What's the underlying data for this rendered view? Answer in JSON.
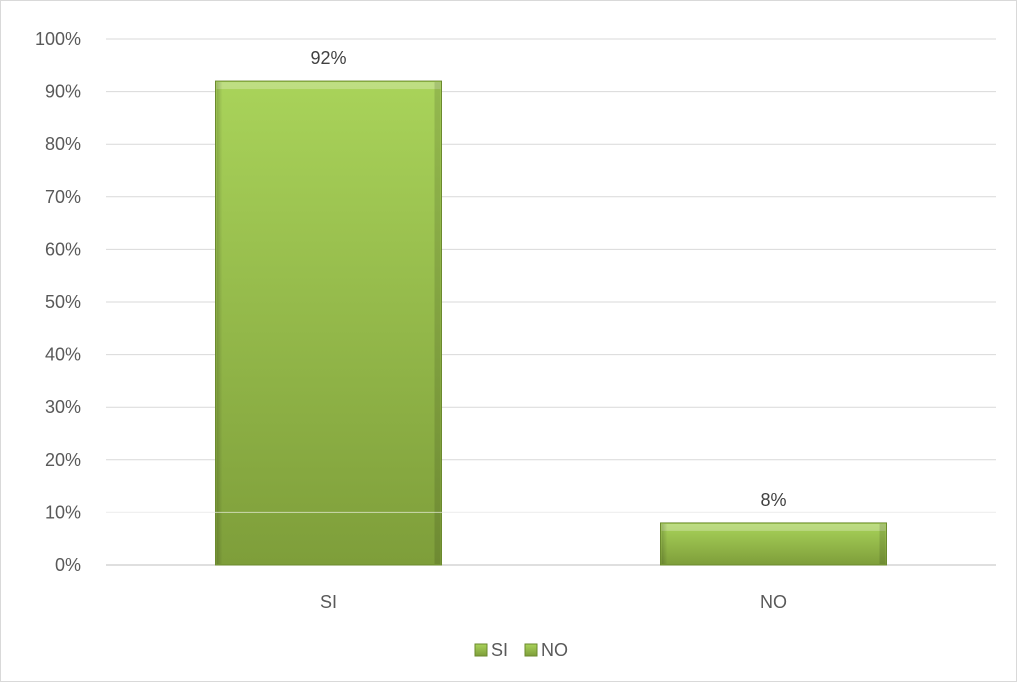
{
  "chart_data": {
    "type": "bar",
    "categories": [
      "SI",
      "NO"
    ],
    "values": [
      92,
      8
    ],
    "data_labels": [
      "92%",
      "8%"
    ],
    "ylim": [
      0,
      100
    ],
    "yticks": [
      0,
      10,
      20,
      30,
      40,
      50,
      60,
      70,
      80,
      90,
      100
    ],
    "ytick_labels": [
      "0%",
      "10%",
      "20%",
      "30%",
      "40%",
      "50%",
      "60%",
      "70%",
      "80%",
      "90%",
      "100%"
    ],
    "grid": true,
    "legend": {
      "placement": "bottom",
      "entries": [
        "SI",
        "NO"
      ]
    },
    "colors": {
      "bar_light": "#a8d05a",
      "bar_dark": "#7a9a3a",
      "bar_edge": "#6b8a2e",
      "grid": "#d9d9d9"
    }
  }
}
